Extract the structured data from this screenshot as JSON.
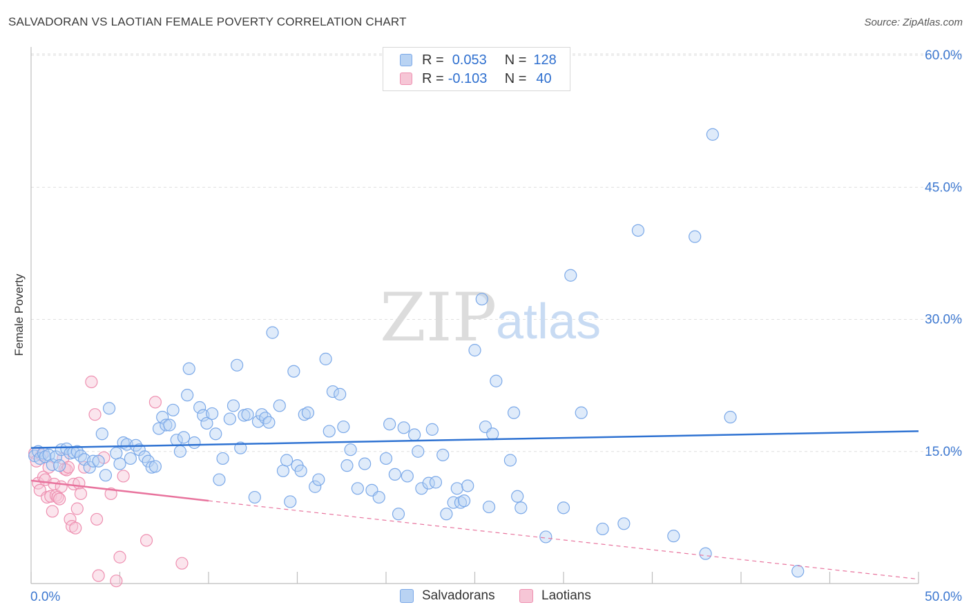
{
  "title": "SALVADORAN VS LAOTIAN FEMALE POVERTY CORRELATION CHART",
  "source": "Source: ZipAtlas.com",
  "watermark": {
    "zip": "ZIP",
    "atlas": "atlas"
  },
  "legend": {
    "rows": [
      {
        "r_label": "R =",
        "r_value": "0.053",
        "n_label": "N =",
        "n_value": "128"
      },
      {
        "r_label": "R =",
        "r_value": "-0.103",
        "n_label": "N =",
        "n_value": "40"
      }
    ]
  },
  "colors": {
    "salvadoran": "#7aa8e8",
    "salvadoran_fill": "#b9d3f3",
    "laotian": "#ee8fb0",
    "laotian_fill": "#f6c6d6",
    "blue_line": "#2e72d2",
    "pink_line": "#e8739d",
    "axis_text": "#3d78d0"
  },
  "chart_data": {
    "type": "scatter",
    "title": "SALVADORAN VS LAOTIAN FEMALE POVERTY CORRELATION CHART",
    "xlabel": "",
    "ylabel": "Female Poverty",
    "xlim": [
      0,
      50
    ],
    "ylim": [
      0,
      60
    ],
    "x_tick_labels": [
      "0.0%",
      "50.0%"
    ],
    "y_ticks": [
      15,
      30,
      45,
      60
    ],
    "y_tick_labels": [
      "15.0%",
      "30.0%",
      "45.0%",
      "60.0%"
    ],
    "legend_position": "top-center",
    "series": [
      {
        "name": "Salvadorans",
        "r": 0.053,
        "n": 128,
        "trend": {
          "x0": 0,
          "y0": 15.4,
          "x1": 50,
          "y1": 17.3
        },
        "points": [
          [
            0.2,
            14.5
          ],
          [
            0.4,
            15.0
          ],
          [
            0.5,
            14.2
          ],
          [
            0.7,
            14.8
          ],
          [
            0.8,
            14.4
          ],
          [
            1.0,
            14.6
          ],
          [
            1.2,
            13.5
          ],
          [
            1.4,
            14.4
          ],
          [
            1.6,
            13.4
          ],
          [
            1.7,
            15.2
          ],
          [
            2.0,
            15.3
          ],
          [
            2.2,
            14.8
          ],
          [
            2.4,
            14.9
          ],
          [
            2.6,
            15.0
          ],
          [
            2.8,
            14.5
          ],
          [
            3.0,
            14.1
          ],
          [
            3.3,
            13.2
          ],
          [
            3.5,
            13.9
          ],
          [
            3.8,
            13.9
          ],
          [
            4.0,
            17.0
          ],
          [
            4.2,
            12.3
          ],
          [
            4.4,
            19.9
          ],
          [
            4.8,
            14.8
          ],
          [
            5.0,
            13.6
          ],
          [
            5.2,
            16.0
          ],
          [
            5.4,
            15.8
          ],
          [
            5.6,
            14.2
          ],
          [
            5.9,
            15.7
          ],
          [
            6.1,
            15.2
          ],
          [
            6.4,
            14.4
          ],
          [
            6.6,
            13.9
          ],
          [
            6.8,
            13.2
          ],
          [
            7.0,
            13.3
          ],
          [
            7.2,
            17.6
          ],
          [
            7.4,
            18.9
          ],
          [
            7.6,
            18.0
          ],
          [
            7.8,
            18.0
          ],
          [
            8.0,
            19.7
          ],
          [
            8.2,
            16.3
          ],
          [
            8.4,
            15.0
          ],
          [
            8.6,
            16.6
          ],
          [
            8.8,
            21.4
          ],
          [
            8.9,
            24.4
          ],
          [
            9.2,
            16.0
          ],
          [
            9.5,
            20.0
          ],
          [
            9.7,
            19.1
          ],
          [
            9.9,
            18.2
          ],
          [
            10.2,
            19.3
          ],
          [
            10.4,
            17.0
          ],
          [
            10.6,
            11.8
          ],
          [
            10.8,
            14.2
          ],
          [
            11.2,
            18.7
          ],
          [
            11.4,
            20.2
          ],
          [
            11.6,
            24.8
          ],
          [
            11.8,
            15.4
          ],
          [
            12.0,
            19.1
          ],
          [
            12.2,
            19.2
          ],
          [
            12.6,
            9.8
          ],
          [
            12.8,
            18.4
          ],
          [
            13.0,
            19.2
          ],
          [
            13.2,
            18.8
          ],
          [
            13.4,
            18.3
          ],
          [
            13.6,
            28.5
          ],
          [
            14.0,
            20.2
          ],
          [
            14.2,
            12.8
          ],
          [
            14.4,
            14.0
          ],
          [
            14.6,
            9.3
          ],
          [
            14.8,
            24.1
          ],
          [
            15.0,
            13.4
          ],
          [
            15.2,
            12.8
          ],
          [
            15.4,
            19.2
          ],
          [
            15.6,
            19.4
          ],
          [
            16.0,
            11.0
          ],
          [
            16.2,
            11.8
          ],
          [
            16.6,
            25.5
          ],
          [
            16.8,
            17.3
          ],
          [
            17.0,
            21.8
          ],
          [
            17.4,
            21.5
          ],
          [
            17.6,
            17.8
          ],
          [
            17.8,
            13.4
          ],
          [
            18.0,
            15.2
          ],
          [
            18.4,
            10.8
          ],
          [
            18.8,
            13.6
          ],
          [
            19.2,
            10.6
          ],
          [
            19.6,
            9.8
          ],
          [
            20.0,
            14.2
          ],
          [
            20.2,
            18.1
          ],
          [
            20.5,
            12.4
          ],
          [
            20.7,
            7.9
          ],
          [
            21.0,
            17.7
          ],
          [
            21.2,
            12.2
          ],
          [
            21.6,
            16.9
          ],
          [
            21.8,
            15.0
          ],
          [
            22.0,
            10.8
          ],
          [
            22.4,
            11.4
          ],
          [
            22.6,
            17.5
          ],
          [
            22.8,
            11.5
          ],
          [
            23.2,
            14.6
          ],
          [
            23.4,
            7.9
          ],
          [
            23.8,
            9.2
          ],
          [
            24.0,
            10.8
          ],
          [
            24.2,
            9.2
          ],
          [
            24.4,
            9.4
          ],
          [
            24.6,
            11.1
          ],
          [
            25.0,
            26.5
          ],
          [
            25.4,
            32.3
          ],
          [
            25.6,
            17.8
          ],
          [
            25.8,
            8.7
          ],
          [
            26.0,
            17.0
          ],
          [
            26.2,
            23.0
          ],
          [
            27.0,
            14.0
          ],
          [
            27.2,
            19.4
          ],
          [
            27.4,
            9.9
          ],
          [
            27.6,
            8.6
          ],
          [
            29.0,
            5.3
          ],
          [
            30.0,
            8.6
          ],
          [
            30.4,
            35.0
          ],
          [
            31.0,
            19.4
          ],
          [
            32.2,
            6.2
          ],
          [
            33.4,
            6.8
          ],
          [
            34.2,
            40.1
          ],
          [
            36.2,
            5.4
          ],
          [
            37.4,
            39.4
          ],
          [
            38.0,
            3.4
          ],
          [
            38.4,
            51.0
          ],
          [
            39.4,
            18.9
          ],
          [
            43.2,
            1.4
          ]
        ]
      },
      {
        "name": "Laotians",
        "r": -0.103,
        "n": 40,
        "trend": {
          "x0": 0,
          "y0": 11.7,
          "x1": 10,
          "y1": 9.4
        },
        "trend_dashed": {
          "x0": 10,
          "y0": 9.4,
          "x1": 50,
          "y1": 0.5
        },
        "points": [
          [
            0.2,
            14.8
          ],
          [
            0.3,
            13.9
          ],
          [
            0.4,
            11.4
          ],
          [
            0.5,
            10.6
          ],
          [
            0.6,
            14.6
          ],
          [
            0.7,
            12.1
          ],
          [
            0.8,
            11.8
          ],
          [
            0.9,
            9.8
          ],
          [
            1.0,
            13.2
          ],
          [
            1.1,
            9.9
          ],
          [
            1.2,
            8.2
          ],
          [
            1.3,
            11.3
          ],
          [
            1.4,
            10.0
          ],
          [
            1.5,
            9.8
          ],
          [
            1.6,
            9.6
          ],
          [
            1.7,
            11.0
          ],
          [
            1.8,
            14.2
          ],
          [
            1.9,
            13.0
          ],
          [
            2.0,
            12.9
          ],
          [
            2.1,
            13.2
          ],
          [
            2.2,
            7.3
          ],
          [
            2.3,
            6.5
          ],
          [
            2.4,
            11.3
          ],
          [
            2.5,
            6.3
          ],
          [
            2.6,
            8.5
          ],
          [
            2.7,
            11.4
          ],
          [
            2.8,
            10.2
          ],
          [
            3.0,
            13.2
          ],
          [
            3.4,
            22.9
          ],
          [
            3.6,
            19.2
          ],
          [
            3.7,
            7.3
          ],
          [
            3.8,
            0.9
          ],
          [
            4.1,
            14.3
          ],
          [
            4.5,
            10.2
          ],
          [
            4.8,
            0.3
          ],
          [
            5.0,
            3.0
          ],
          [
            5.2,
            12.2
          ],
          [
            6.5,
            4.9
          ],
          [
            7.0,
            20.6
          ],
          [
            8.5,
            2.3
          ]
        ]
      }
    ]
  },
  "bottom_legend": {
    "salvadorans": "Salvadorans",
    "laotians": "Laotians"
  }
}
